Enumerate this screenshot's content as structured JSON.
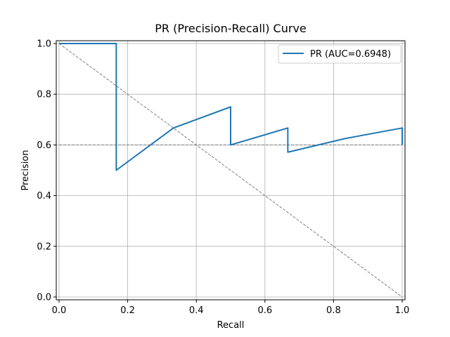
{
  "chart_data": {
    "type": "line",
    "title": "PR (Precision-Recall) Curve",
    "xlabel": "Recall",
    "ylabel": "Precision",
    "xlim": [
      0,
      1
    ],
    "ylim": [
      0,
      1
    ],
    "xticks": [
      0.0,
      0.2,
      0.4,
      0.6,
      0.8,
      1.0
    ],
    "yticks": [
      0.0,
      0.2,
      0.4,
      0.6,
      0.8,
      1.0
    ],
    "xtick_labels": [
      "0.0",
      "0.2",
      "0.4",
      "0.6",
      "0.8",
      "1.0"
    ],
    "ytick_labels": [
      "0.0",
      "0.2",
      "0.4",
      "0.6",
      "0.8",
      "1.0"
    ],
    "grid": true,
    "legend_position": "top-right",
    "series": [
      {
        "name": "PR (AUC=0.6948)",
        "color": "#1f77b4",
        "style": "solid",
        "x": [
          0.0,
          0.1667,
          0.1667,
          0.3333,
          0.5,
          0.5,
          0.6667,
          0.6667,
          0.8333,
          1.0,
          1.0
        ],
        "y": [
          1.0,
          1.0,
          0.5,
          0.6667,
          0.75,
          0.6,
          0.6667,
          0.5714,
          0.625,
          0.6667,
          0.6
        ]
      }
    ],
    "reference_lines": [
      {
        "kind": "diagonal",
        "x": [
          0.0,
          1.0
        ],
        "y": [
          1.0,
          0.0
        ],
        "color": "#808080",
        "style": "dashed"
      },
      {
        "kind": "horizontal",
        "y": 0.6,
        "color": "#808080",
        "style": "dashed"
      }
    ]
  }
}
